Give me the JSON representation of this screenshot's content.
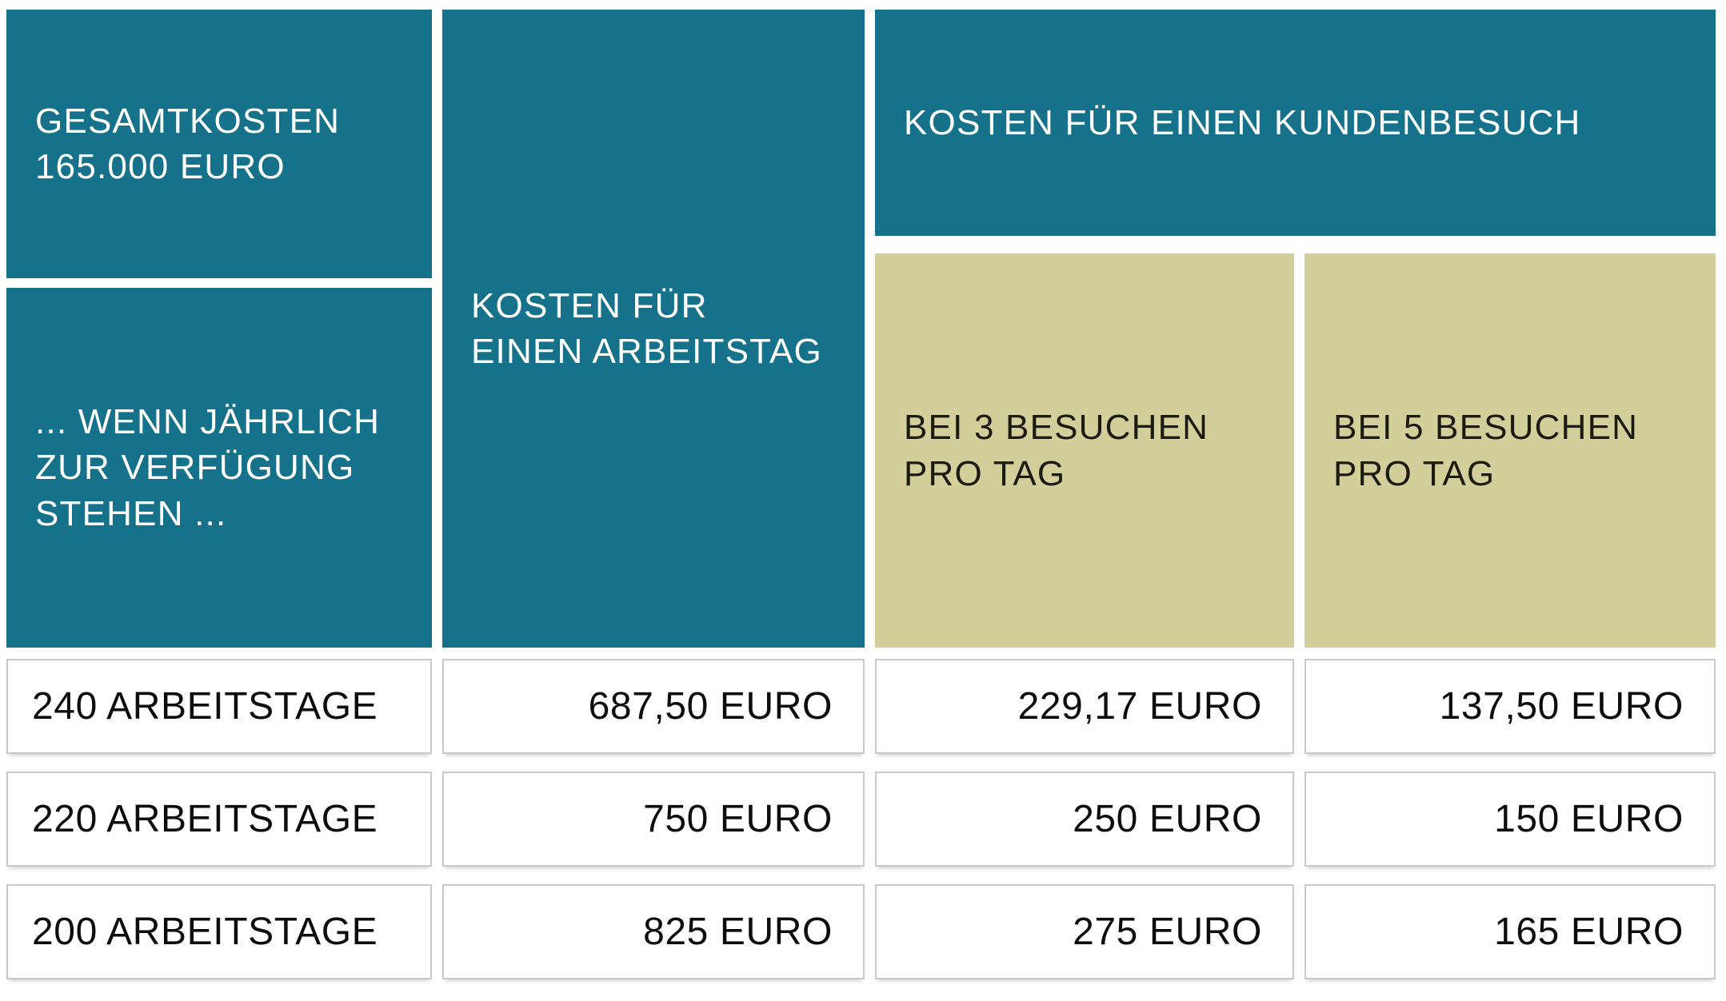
{
  "colors": {
    "teal": "#15728a",
    "khaki": "#d2cf9b",
    "header_text_on_teal": "#ffffff",
    "header_text_on_khaki": "#1c1b12",
    "cell_border": "#c9c9c9",
    "cell_text": "#0d0d0d",
    "background": "#ffffff"
  },
  "chart_data": {
    "type": "table",
    "header": {
      "gesamtkosten_lines": [
        "GESAMTKOSTEN",
        "165.000 EURO"
      ],
      "wenn_lines": [
        "... WENN JÄHRLICH",
        "ZUR VERFÜGUNG",
        "STEHEN ..."
      ],
      "arbeitstag_lines": [
        "KOSTEN FÜR",
        "EINEN ARBEITSTAG"
      ],
      "kundenbesuch_title": "KOSTEN FÜR EINEN KUNDENBESUCH",
      "besuche3_lines": [
        "BEI 3 BESUCHEN",
        "PRO TAG"
      ],
      "besuche5_lines": [
        "BEI 5 BESUCHEN",
        "PRO TAG"
      ]
    },
    "rows": [
      [
        "240 ARBEITSTAGE",
        "687,50 EURO",
        "229,17 EURO",
        "137,50 EURO"
      ],
      [
        "220 ARBEITSTAGE",
        "750 EURO",
        "250 EURO",
        "150 EURO"
      ],
      [
        "200 ARBEITSTAGE",
        "825 EURO",
        "275 EURO",
        "165 EURO"
      ]
    ],
    "numeric": {
      "gesamtkosten_euro": 165000,
      "arbeitstage": [
        240,
        220,
        200
      ],
      "kosten_pro_arbeitstag_euro": [
        687.5,
        750,
        825
      ],
      "kosten_pro_kundenbesuch_bei_3_euro": [
        229.17,
        250,
        275
      ],
      "kosten_pro_kundenbesuch_bei_5_euro": [
        137.5,
        150,
        165
      ]
    }
  }
}
